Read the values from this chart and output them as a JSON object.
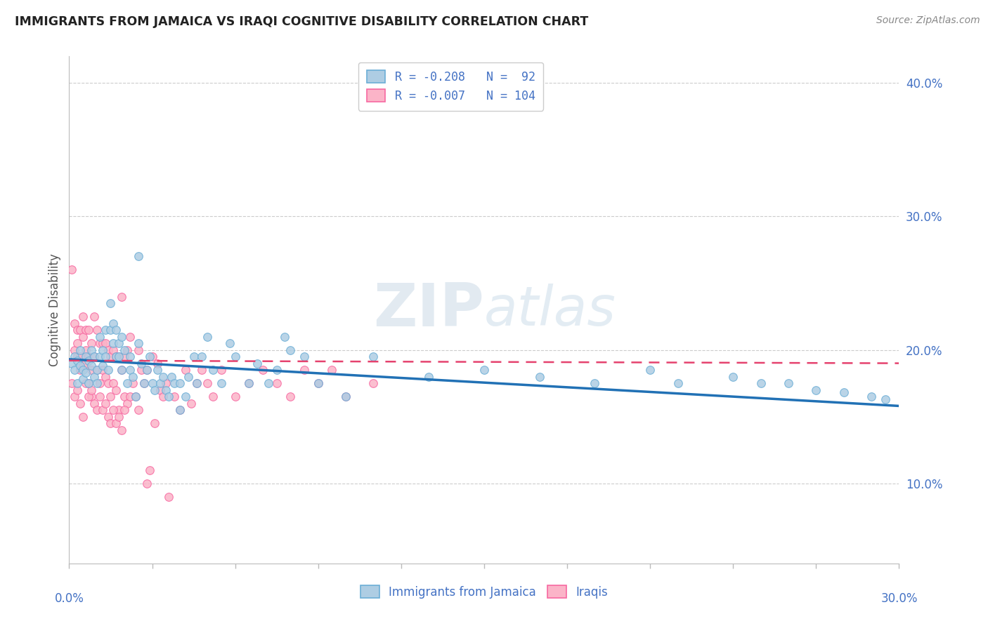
{
  "title": "IMMIGRANTS FROM JAMAICA VS IRAQI COGNITIVE DISABILITY CORRELATION CHART",
  "source": "Source: ZipAtlas.com",
  "ylabel": "Cognitive Disability",
  "x_legend_label1": "Immigrants from Jamaica",
  "x_legend_label2": "Iraqis",
  "xlim": [
    0.0,
    0.3
  ],
  "ylim": [
    0.04,
    0.42
  ],
  "yticks": [
    0.1,
    0.2,
    0.3,
    0.4
  ],
  "ytick_labels": [
    "10.0%",
    "20.0%",
    "30.0%",
    "40.0%"
  ],
  "xticks": [
    0.0,
    0.03,
    0.06,
    0.09,
    0.12,
    0.15,
    0.18,
    0.21,
    0.24,
    0.27,
    0.3
  ],
  "color_blue_fill": "#aecde3",
  "color_blue_edge": "#6baed6",
  "color_blue_line": "#2171b5",
  "color_pink_fill": "#fbb4c8",
  "color_pink_edge": "#f768a1",
  "color_pink_line": "#e5426e",
  "label_color": "#4472C4",
  "watermark": "ZIPatlas",
  "background_color": "#ffffff",
  "grid_color": "#cccccc",
  "title_color": "#222222",
  "blue_scatter_x": [
    0.001,
    0.002,
    0.002,
    0.003,
    0.003,
    0.004,
    0.004,
    0.005,
    0.005,
    0.006,
    0.006,
    0.007,
    0.007,
    0.008,
    0.008,
    0.009,
    0.009,
    0.01,
    0.01,
    0.011,
    0.011,
    0.012,
    0.012,
    0.013,
    0.013,
    0.014,
    0.015,
    0.015,
    0.016,
    0.016,
    0.017,
    0.017,
    0.018,
    0.018,
    0.019,
    0.019,
    0.02,
    0.021,
    0.022,
    0.022,
    0.023,
    0.024,
    0.025,
    0.025,
    0.026,
    0.027,
    0.028,
    0.029,
    0.03,
    0.031,
    0.032,
    0.033,
    0.034,
    0.035,
    0.036,
    0.037,
    0.038,
    0.04,
    0.04,
    0.042,
    0.043,
    0.045,
    0.046,
    0.048,
    0.05,
    0.052,
    0.055,
    0.058,
    0.06,
    0.065,
    0.068,
    0.072,
    0.075,
    0.078,
    0.08,
    0.085,
    0.09,
    0.1,
    0.11,
    0.13,
    0.15,
    0.17,
    0.19,
    0.21,
    0.22,
    0.24,
    0.25,
    0.26,
    0.27,
    0.28,
    0.29,
    0.295
  ],
  "blue_scatter_y": [
    0.19,
    0.195,
    0.185,
    0.192,
    0.175,
    0.188,
    0.2,
    0.185,
    0.178,
    0.195,
    0.183,
    0.192,
    0.175,
    0.2,
    0.188,
    0.18,
    0.195,
    0.185,
    0.175,
    0.195,
    0.21,
    0.188,
    0.2,
    0.215,
    0.195,
    0.185,
    0.235,
    0.215,
    0.22,
    0.205,
    0.195,
    0.215,
    0.195,
    0.205,
    0.185,
    0.21,
    0.2,
    0.175,
    0.185,
    0.195,
    0.18,
    0.165,
    0.27,
    0.205,
    0.19,
    0.175,
    0.185,
    0.195,
    0.175,
    0.17,
    0.185,
    0.175,
    0.18,
    0.17,
    0.165,
    0.18,
    0.175,
    0.155,
    0.175,
    0.165,
    0.18,
    0.195,
    0.175,
    0.195,
    0.21,
    0.185,
    0.175,
    0.205,
    0.195,
    0.175,
    0.19,
    0.175,
    0.185,
    0.21,
    0.2,
    0.195,
    0.175,
    0.165,
    0.195,
    0.18,
    0.185,
    0.18,
    0.175,
    0.185,
    0.175,
    0.18,
    0.175,
    0.175,
    0.17,
    0.168,
    0.165,
    0.163
  ],
  "pink_scatter_x": [
    0.001,
    0.002,
    0.002,
    0.003,
    0.003,
    0.003,
    0.004,
    0.004,
    0.004,
    0.005,
    0.005,
    0.005,
    0.006,
    0.006,
    0.006,
    0.007,
    0.007,
    0.007,
    0.008,
    0.008,
    0.008,
    0.009,
    0.009,
    0.01,
    0.01,
    0.011,
    0.011,
    0.012,
    0.012,
    0.013,
    0.013,
    0.014,
    0.014,
    0.015,
    0.015,
    0.016,
    0.016,
    0.017,
    0.017,
    0.018,
    0.018,
    0.019,
    0.019,
    0.02,
    0.02,
    0.021,
    0.021,
    0.022,
    0.022,
    0.023,
    0.024,
    0.025,
    0.025,
    0.026,
    0.027,
    0.028,
    0.028,
    0.029,
    0.03,
    0.031,
    0.032,
    0.033,
    0.034,
    0.035,
    0.036,
    0.038,
    0.04,
    0.042,
    0.044,
    0.046,
    0.048,
    0.05,
    0.052,
    0.055,
    0.06,
    0.065,
    0.07,
    0.075,
    0.08,
    0.085,
    0.09,
    0.095,
    0.1,
    0.11,
    0.001,
    0.002,
    0.003,
    0.004,
    0.005,
    0.006,
    0.007,
    0.008,
    0.009,
    0.01,
    0.011,
    0.012,
    0.013,
    0.014,
    0.015,
    0.016,
    0.017,
    0.018,
    0.019,
    0.02
  ],
  "pink_scatter_y": [
    0.26,
    0.22,
    0.2,
    0.215,
    0.195,
    0.205,
    0.215,
    0.195,
    0.185,
    0.225,
    0.21,
    0.19,
    0.215,
    0.2,
    0.19,
    0.215,
    0.195,
    0.175,
    0.205,
    0.185,
    0.165,
    0.225,
    0.195,
    0.215,
    0.185,
    0.205,
    0.175,
    0.205,
    0.185,
    0.205,
    0.18,
    0.2,
    0.175,
    0.195,
    0.165,
    0.2,
    0.175,
    0.195,
    0.17,
    0.195,
    0.155,
    0.24,
    0.185,
    0.195,
    0.165,
    0.2,
    0.16,
    0.21,
    0.165,
    0.175,
    0.165,
    0.2,
    0.155,
    0.185,
    0.175,
    0.185,
    0.1,
    0.11,
    0.195,
    0.145,
    0.19,
    0.17,
    0.165,
    0.175,
    0.09,
    0.165,
    0.155,
    0.185,
    0.16,
    0.175,
    0.185,
    0.175,
    0.165,
    0.185,
    0.165,
    0.175,
    0.185,
    0.175,
    0.165,
    0.185,
    0.175,
    0.185,
    0.165,
    0.175,
    0.175,
    0.165,
    0.17,
    0.16,
    0.15,
    0.175,
    0.165,
    0.17,
    0.16,
    0.155,
    0.165,
    0.155,
    0.16,
    0.15,
    0.145,
    0.155,
    0.145,
    0.15,
    0.14,
    0.155
  ],
  "blue_trend_x": [
    0.0,
    0.3
  ],
  "blue_trend_y": [
    0.193,
    0.158
  ],
  "pink_trend_x": [
    0.0,
    0.3
  ],
  "pink_trend_y": [
    0.192,
    0.19
  ]
}
